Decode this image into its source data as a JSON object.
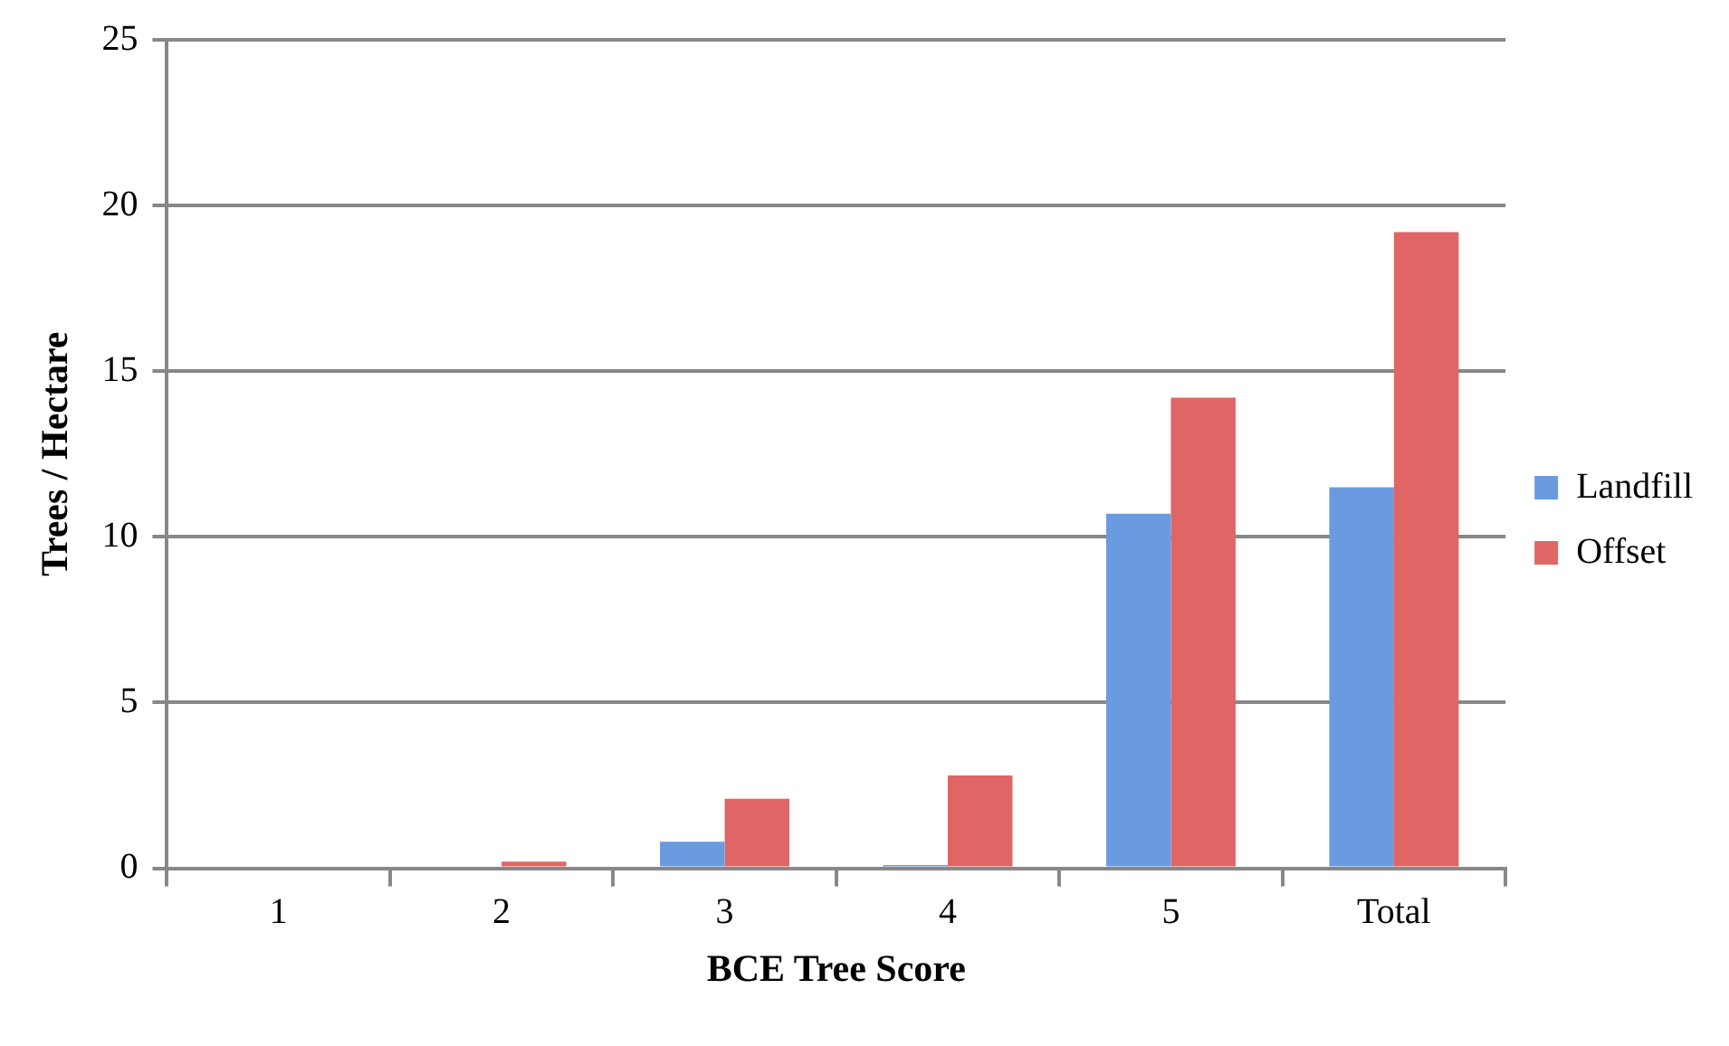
{
  "chart_data": {
    "type": "bar",
    "xlabel": "BCE Tree Score",
    "ylabel": "Trees / Hectare",
    "categories": [
      "1",
      "2",
      "3",
      "4",
      "5",
      "Total"
    ],
    "series": [
      {
        "name": "Landfill",
        "color": "#6a9ae0",
        "values": [
          0,
          0,
          0.8,
          0.1,
          10.7,
          11.5
        ]
      },
      {
        "name": "Offset",
        "color": "#e06666",
        "values": [
          0,
          0.2,
          2.1,
          2.8,
          14.2,
          19.2
        ]
      }
    ],
    "ylim": [
      0,
      25
    ],
    "yticks": [
      0,
      5,
      10,
      15,
      20,
      25
    ],
    "grid": "y",
    "legend": "right"
  }
}
